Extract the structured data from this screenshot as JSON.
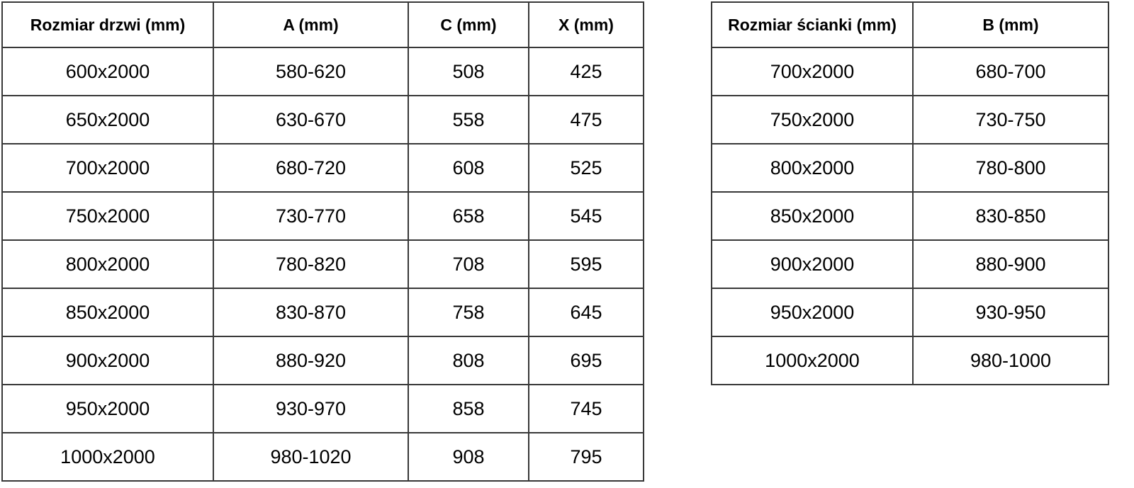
{
  "page": {
    "background_color": "#ffffff",
    "border_color": "#383838",
    "text_color": "#000000"
  },
  "left_table": {
    "headers": [
      "Rozmiar drzwi (mm)",
      "A (mm)",
      "C (mm)",
      "X (mm)"
    ],
    "rows": [
      [
        "600x2000",
        "580-620",
        "508",
        "425"
      ],
      [
        "650x2000",
        "630-670",
        "558",
        "475"
      ],
      [
        "700x2000",
        "680-720",
        "608",
        "525"
      ],
      [
        "750x2000",
        "730-770",
        "658",
        "545"
      ],
      [
        "800x2000",
        "780-820",
        "708",
        "595"
      ],
      [
        "850x2000",
        "830-870",
        "758",
        "645"
      ],
      [
        "900x2000",
        "880-920",
        "808",
        "695"
      ],
      [
        "950x2000",
        "930-970",
        "858",
        "745"
      ],
      [
        "1000x2000",
        "980-1020",
        "908",
        "795"
      ]
    ]
  },
  "right_table": {
    "headers": [
      "Rozmiar ścianki (mm)",
      "B (mm)"
    ],
    "rows": [
      [
        "700x2000",
        "680-700"
      ],
      [
        "750x2000",
        "730-750"
      ],
      [
        "800x2000",
        "780-800"
      ],
      [
        "850x2000",
        "830-850"
      ],
      [
        "900x2000",
        "880-900"
      ],
      [
        "950x2000",
        "930-950"
      ],
      [
        "1000x2000",
        "980-1000"
      ]
    ]
  }
}
